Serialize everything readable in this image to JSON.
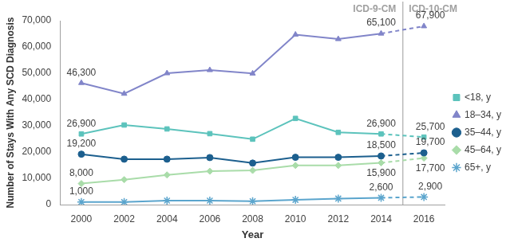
{
  "chart_data": {
    "type": "line",
    "x_label": "Year",
    "y_label": "Number of Stays With Any SCD Diagnosis",
    "x": [
      2000,
      2002,
      2004,
      2006,
      2008,
      2010,
      2012,
      2014,
      2016
    ],
    "xlim": [
      1999,
      2017
    ],
    "xticks": [
      2000,
      2002,
      2004,
      2006,
      2008,
      2010,
      2012,
      2014,
      2016
    ],
    "ylim": [
      0,
      70000
    ],
    "yticks": [
      0,
      {
        "value": 10000,
        "label": "10,000"
      },
      {
        "value": 20000,
        "label": "20,000"
      },
      {
        "value": 30000,
        "label": "30,000"
      },
      {
        "value": 40000,
        "label": "40,000"
      },
      {
        "value": 50000,
        "label": "50,000"
      },
      {
        "value": 60000,
        "label": "60,000"
      },
      {
        "value": 70000,
        "label": "70,000"
      }
    ],
    "grid": false,
    "legend": "right",
    "data_labels": true,
    "series": [
      {
        "name": "<18, y",
        "color": "#5cc3bc",
        "marker": "square",
        "values": [
          26900,
          30300,
          28800,
          27000,
          24900,
          32800,
          27500,
          26900,
          25700
        ],
        "value_labels": [
          "26,900",
          null,
          null,
          null,
          null,
          null,
          null,
          "26,900",
          "25,700"
        ]
      },
      {
        "name": "18–34, y",
        "color": "#8185c9",
        "marker": "triangle",
        "values": [
          46300,
          42200,
          50000,
          51200,
          49900,
          64700,
          63000,
          65100,
          67900
        ],
        "value_labels": [
          "46,300",
          null,
          null,
          null,
          null,
          null,
          null,
          "65,100",
          "67,900"
        ]
      },
      {
        "name": "35–44, y",
        "color": "#1c5f8e",
        "marker": "circle",
        "values": [
          19200,
          17300,
          17300,
          17900,
          15800,
          18000,
          18000,
          18500,
          19700
        ],
        "value_labels": [
          "19,200",
          null,
          null,
          null,
          null,
          null,
          null,
          "18,500",
          "19,700"
        ]
      },
      {
        "name": "45–64, y",
        "color": "#a9dca9",
        "marker": "diamond",
        "values": [
          8000,
          9500,
          11300,
          12700,
          13000,
          14900,
          14900,
          15900,
          17700
        ],
        "value_labels": [
          "8,000",
          null,
          null,
          null,
          null,
          null,
          null,
          "15,900",
          "17,700"
        ]
      },
      {
        "name": "65+, y",
        "color": "#5ba5cd",
        "marker": "star",
        "values": [
          1000,
          1000,
          1500,
          1500,
          1300,
          1800,
          2300,
          2600,
          2900
        ],
        "value_labels": [
          "1,000",
          null,
          null,
          null,
          null,
          null,
          null,
          "2,600",
          "2,900"
        ]
      }
    ],
    "annotations": [
      {
        "x": 2015,
        "left_label": "ICD-9-CM",
        "right_label": "ICD-10-CM"
      }
    ]
  }
}
